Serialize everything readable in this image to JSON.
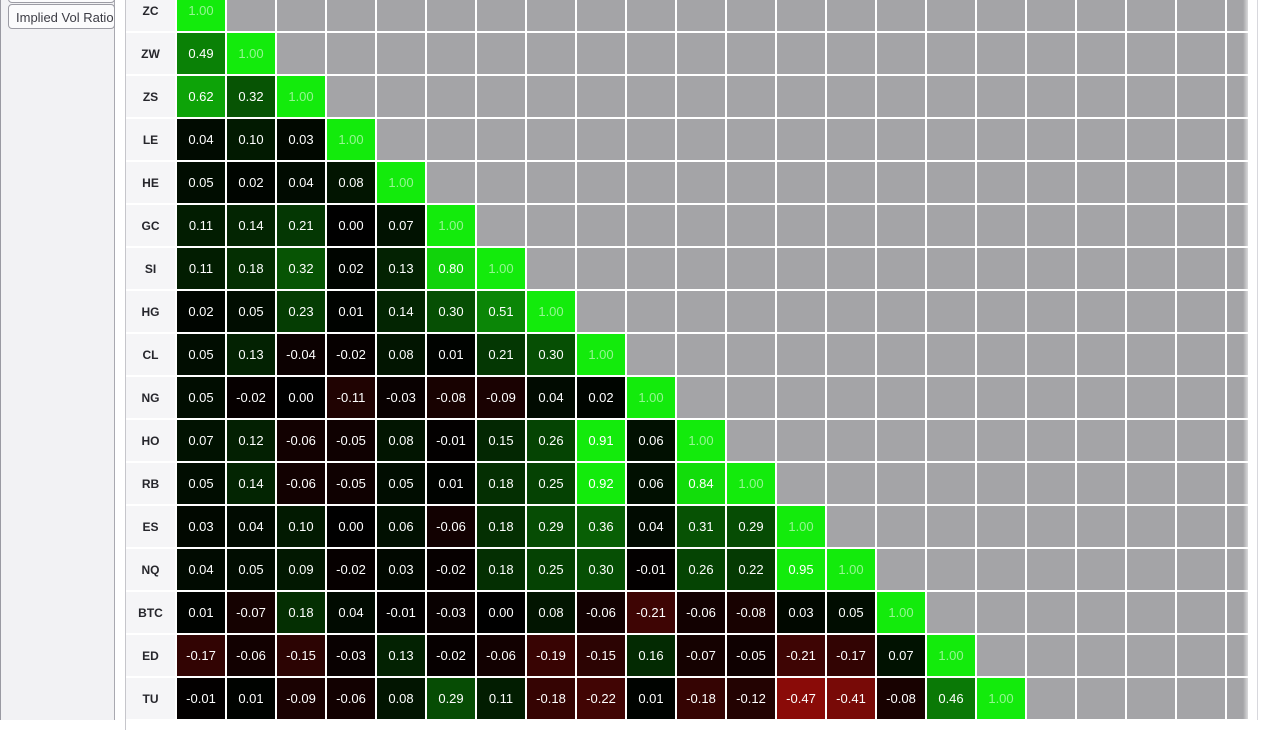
{
  "left_panel": {
    "buttons": [
      {
        "label": ""
      },
      {
        "label": "Implied Vol Ratio"
      }
    ]
  },
  "palette": {
    "positive_max": "#13e20c",
    "negative_max": "#8b100e",
    "zero": "#000000",
    "empty_cell": "#a4a4a7",
    "grid_line": "#ffffff",
    "label_bg": "#f5f5f7",
    "panel_bg": "#f2f2f4"
  },
  "chart_data": {
    "type": "heatmap",
    "matrix_style": "lower-triangular-correlation",
    "value_format": "0.00",
    "total_grid_columns": 22,
    "categories": [
      "ZC",
      "ZW",
      "ZS",
      "LE",
      "HE",
      "GC",
      "SI",
      "HG",
      "CL",
      "NG",
      "HO",
      "RB",
      "ES",
      "NQ",
      "BTC",
      "ED",
      "TU"
    ],
    "rows": [
      [
        1.0
      ],
      [
        0.49,
        1.0
      ],
      [
        0.62,
        0.32,
        1.0
      ],
      [
        0.04,
        0.1,
        0.03,
        1.0
      ],
      [
        0.05,
        0.02,
        0.04,
        0.08,
        1.0
      ],
      [
        0.11,
        0.14,
        0.21,
        0.0,
        0.07,
        1.0
      ],
      [
        0.11,
        0.18,
        0.32,
        0.02,
        0.13,
        0.8,
        1.0
      ],
      [
        0.02,
        0.05,
        0.23,
        0.01,
        0.14,
        0.3,
        0.51,
        1.0
      ],
      [
        0.05,
        0.13,
        -0.04,
        -0.02,
        0.08,
        0.01,
        0.21,
        0.3,
        1.0
      ],
      [
        0.05,
        -0.02,
        0.0,
        -0.11,
        -0.03,
        -0.08,
        -0.09,
        0.04,
        0.02,
        1.0
      ],
      [
        0.07,
        0.12,
        -0.06,
        -0.05,
        0.08,
        -0.01,
        0.15,
        0.26,
        0.91,
        0.06,
        1.0
      ],
      [
        0.05,
        0.14,
        -0.06,
        -0.05,
        0.05,
        0.01,
        0.18,
        0.25,
        0.92,
        0.06,
        0.84,
        1.0
      ],
      [
        0.03,
        0.04,
        0.1,
        0.0,
        0.06,
        -0.06,
        0.18,
        0.29,
        0.36,
        0.04,
        0.31,
        0.29,
        1.0
      ],
      [
        0.04,
        0.05,
        0.09,
        -0.02,
        0.03,
        -0.02,
        0.18,
        0.25,
        0.3,
        -0.01,
        0.26,
        0.22,
        0.95,
        1.0
      ],
      [
        0.01,
        -0.07,
        0.18,
        0.04,
        -0.01,
        -0.03,
        0.0,
        0.08,
        -0.06,
        -0.21,
        -0.06,
        -0.08,
        0.03,
        0.05,
        1.0
      ],
      [
        -0.17,
        -0.06,
        -0.15,
        -0.03,
        0.13,
        -0.02,
        -0.06,
        -0.19,
        -0.15,
        0.16,
        -0.07,
        -0.05,
        -0.21,
        -0.17,
        0.07,
        1.0
      ],
      [
        -0.01,
        0.01,
        -0.09,
        -0.06,
        0.08,
        0.29,
        0.11,
        -0.18,
        -0.22,
        0.01,
        -0.18,
        -0.12,
        -0.47,
        -0.41,
        -0.08,
        0.46,
        1.0
      ]
    ]
  }
}
